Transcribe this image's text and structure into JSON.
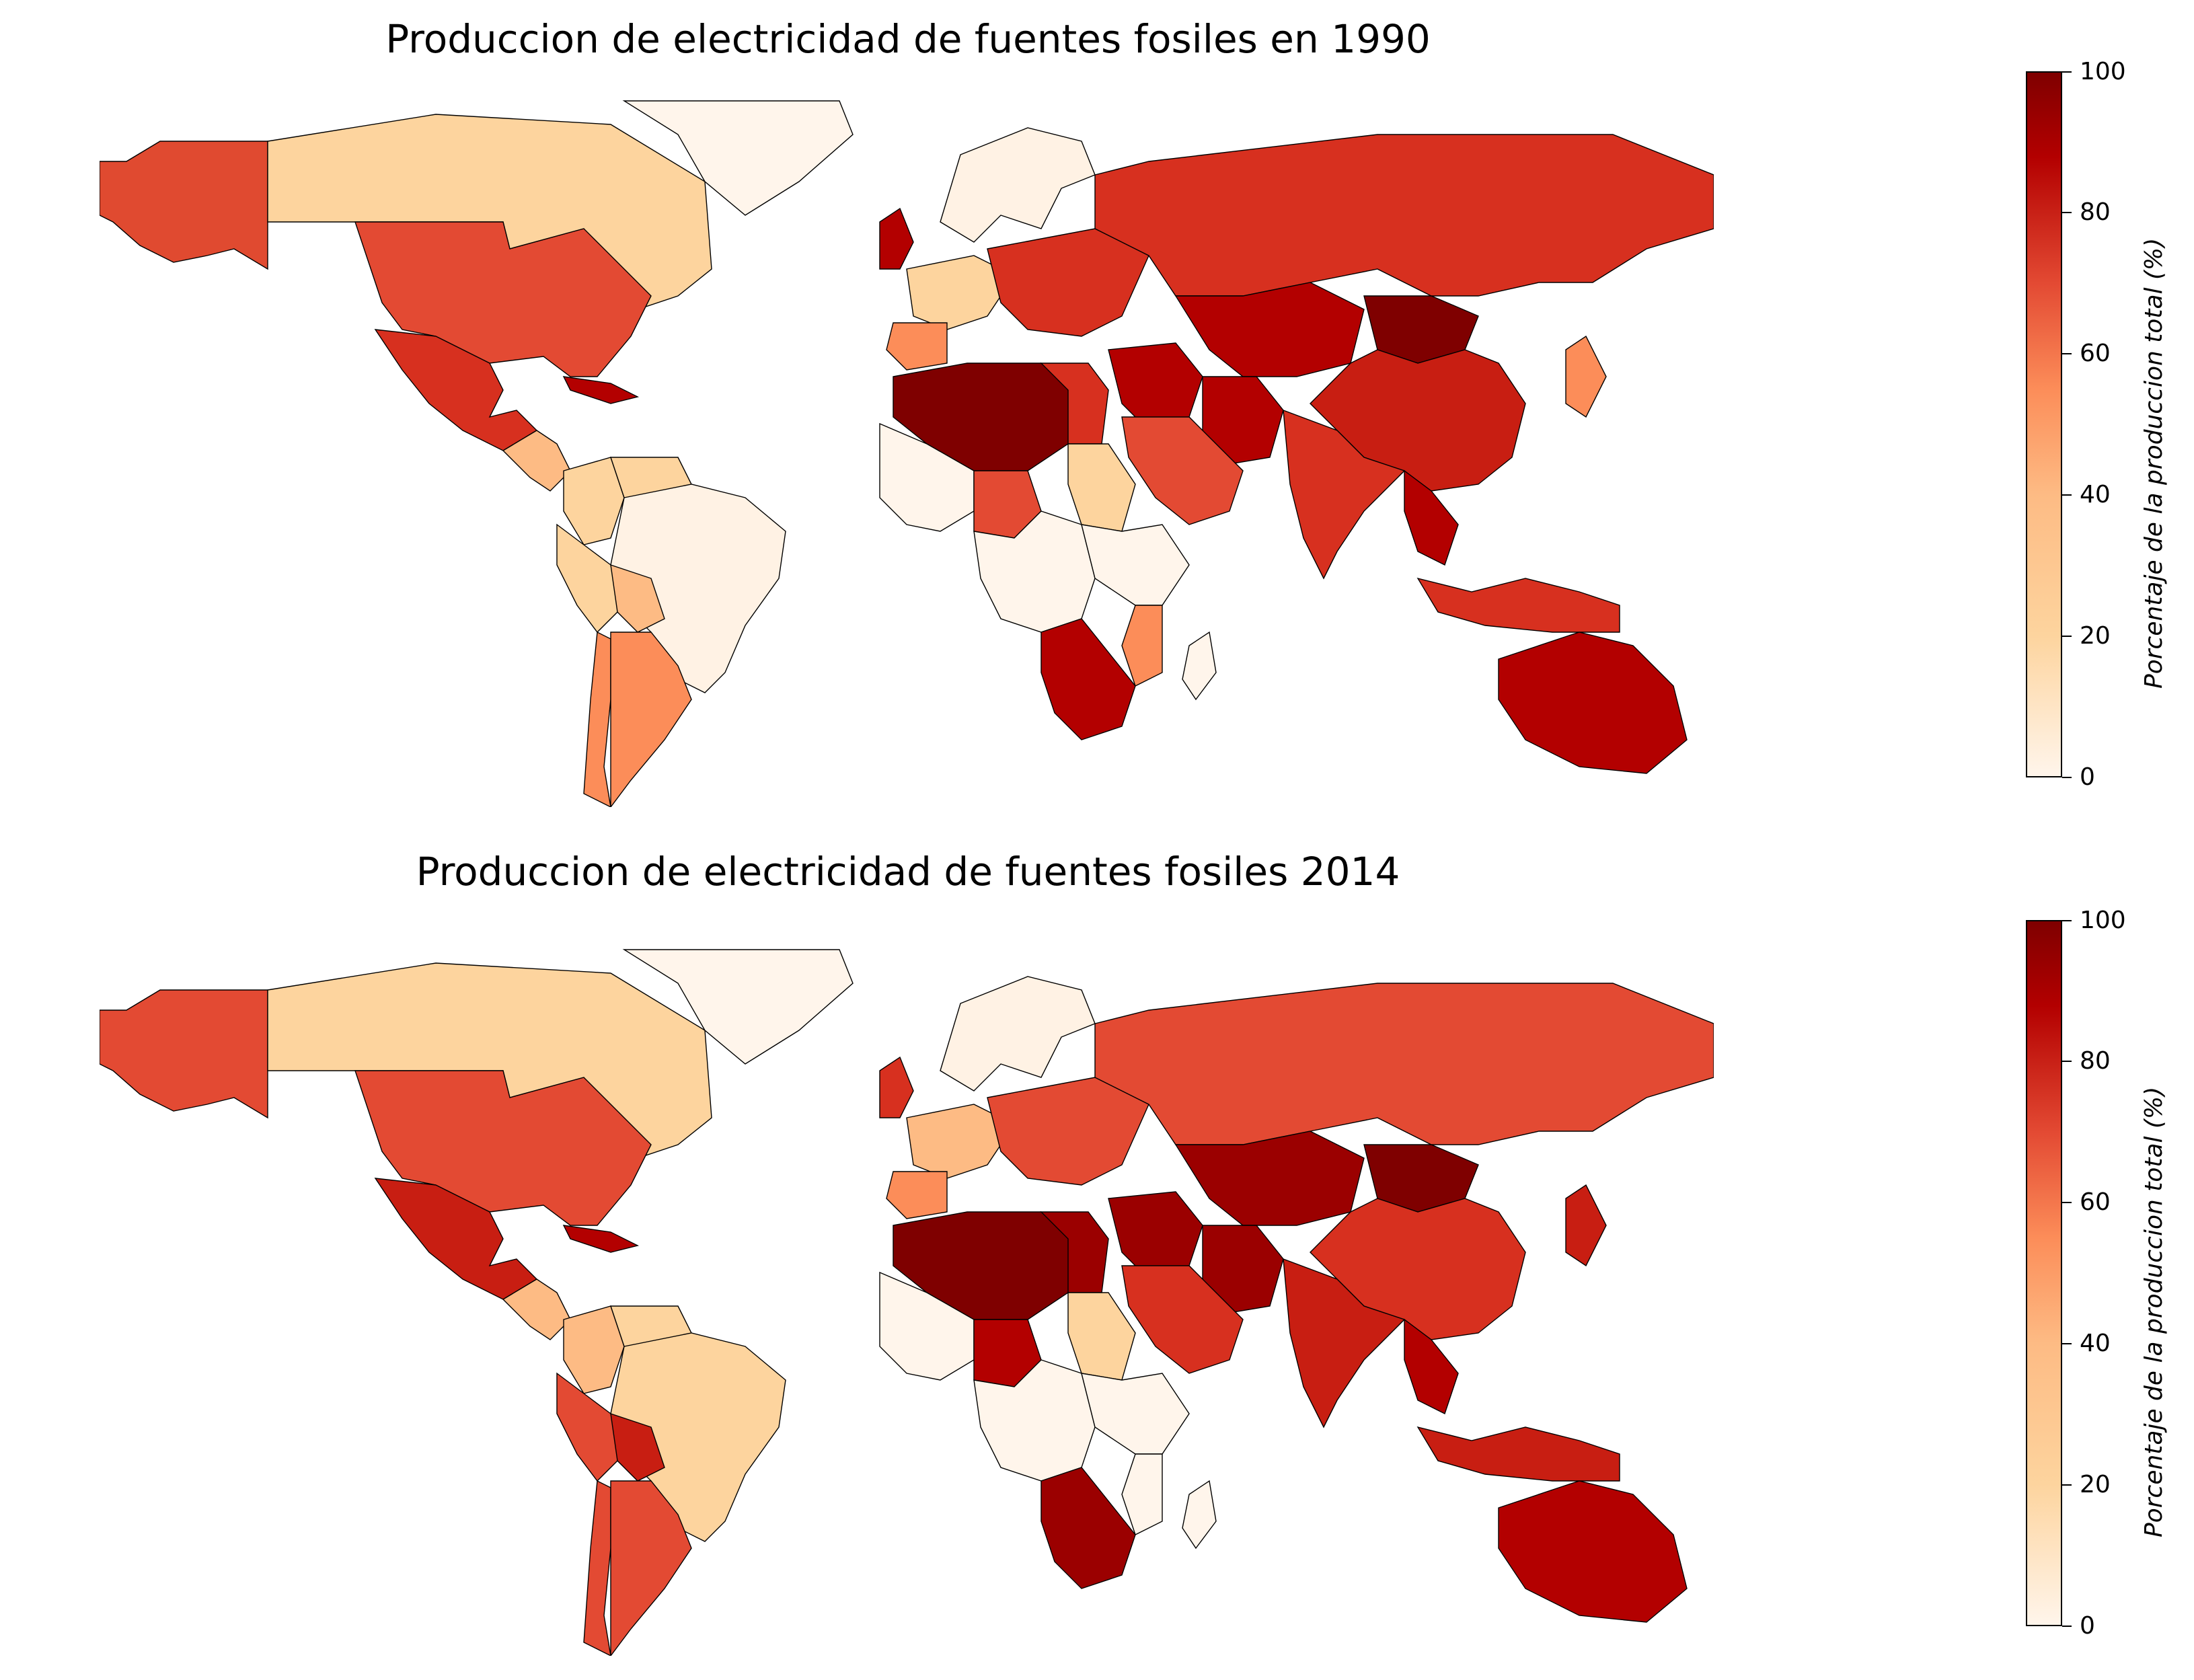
{
  "maps": [
    {
      "title": "Produccion de electricidad de fuentes fosiles en 1990",
      "colorbar": {
        "label": "Porcentaje de la produccion total (%)",
        "ticks": [
          "0",
          "20",
          "40",
          "60",
          "80",
          "100"
        ],
        "min": 0,
        "max": 100
      },
      "colors": {
        "alaska": "#e04a30",
        "canada": "#fdd49e",
        "greenland": "#fff5eb",
        "usa": "#e34a33",
        "mexico": "#d7301f",
        "central_america": "#fdbb84",
        "caribbean": "#b30000",
        "colombia": "#fdd49e",
        "venezuela": "#fdd49e",
        "peru": "#fdd49e",
        "brazil": "#fff2e4",
        "chile": "#fc8d59",
        "argentina": "#fc8d59",
        "bolivia": "#fdbb84",
        "uk": "#b30000",
        "scandinavia": "#fff2e4",
        "west_europe": "#fdd49e",
        "spain": "#fc8d59",
        "east_europe": "#d7301f",
        "russia": "#d7301f",
        "kazakhstan": "#b30000",
        "mongolia": "#7f0000",
        "china": "#c81e12",
        "middle_east": "#b30000",
        "arabia": "#e34a33",
        "iran": "#b30000",
        "india": "#d7301f",
        "southeast_asia": "#b30000",
        "japan": "#fc8d59",
        "north_africa": "#7f0000",
        "egypt": "#d7301f",
        "west_africa": "#fff5eb",
        "nigeria": "#e34a33",
        "sudan": "#fdd49e",
        "central_africa": "#fff5eb",
        "east_africa": "#fff5eb",
        "south_africa": "#b30000",
        "mozambique": "#fc8d59",
        "madagascar": "#fff5eb",
        "indonesia": "#d7301f",
        "australia": "#b30000",
        "new_zealand": "#fdd49e"
      }
    },
    {
      "title": "Produccion de electricidad de fuentes fosiles 2014",
      "colorbar": {
        "label": "Porcentaje de la produccion total (%)",
        "ticks": [
          "0",
          "20",
          "40",
          "60",
          "80",
          "100"
        ],
        "min": 0,
        "max": 100
      },
      "colors": {
        "alaska": "#e34a33",
        "canada": "#fdd49e",
        "greenland": "#fff5eb",
        "usa": "#e34a33",
        "mexico": "#c81e12",
        "central_america": "#fdbb84",
        "caribbean": "#b30000",
        "colombia": "#fdbb84",
        "venezuela": "#fdd49e",
        "peru": "#e34a33",
        "brazil": "#fdd49e",
        "chile": "#e34a33",
        "argentina": "#e34a33",
        "bolivia": "#c81e12",
        "uk": "#d7301f",
        "scandinavia": "#fff2e4",
        "west_europe": "#fdbb84",
        "spain": "#fc8d59",
        "east_europe": "#e34a33",
        "russia": "#e34a33",
        "kazakhstan": "#9b0000",
        "mongolia": "#7f0000",
        "china": "#d7301f",
        "middle_east": "#9b0000",
        "arabia": "#d7301f",
        "iran": "#9b0000",
        "india": "#c81e12",
        "southeast_asia": "#b30000",
        "japan": "#c81e12",
        "north_africa": "#7f0000",
        "egypt": "#9b0000",
        "west_africa": "#fff5eb",
        "nigeria": "#b30000",
        "sudan": "#fdd49e",
        "central_africa": "#fff5eb",
        "east_africa": "#fff5eb",
        "south_africa": "#9b0000",
        "mozambique": "#fff5eb",
        "madagascar": "#fff5eb",
        "indonesia": "#c81e12",
        "australia": "#b30000",
        "new_zealand": "#fdd49e"
      }
    }
  ]
}
